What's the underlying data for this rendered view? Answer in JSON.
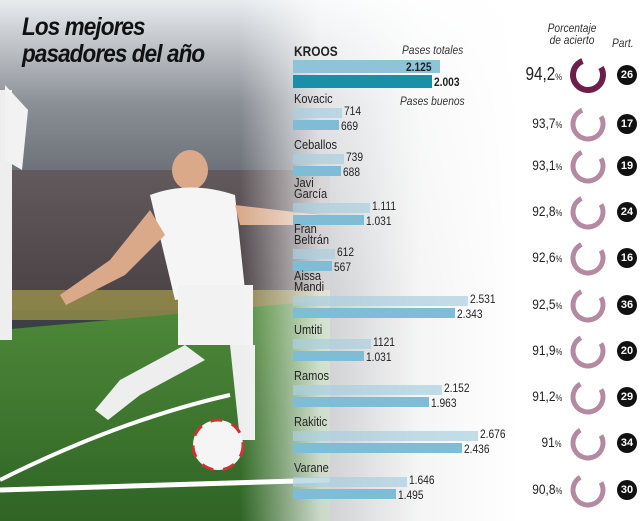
{
  "title_line1": "Los mejores",
  "title_line2": "pasadores del año",
  "headers": {
    "total": "Pases totales",
    "good": "Pases buenos",
    "pct": [
      "Porcentaje",
      "de acierto"
    ],
    "matches": "Part."
  },
  "colors": {
    "total_bar": "#a9cfe0",
    "good_bar": "#7fbcd6",
    "kroos_total": "#8fc3d8",
    "kroos_good": "#1a8fa8",
    "ring_highlight": "#6b1f4a",
    "ring": "#b38aa2"
  },
  "chart_data": {
    "type": "bar",
    "categories": [
      "KROOS",
      "Kovacic",
      "Ceballos",
      "Javi García",
      "Fran Beltrán",
      "Aissa Mandi",
      "Umtiti",
      "Ramos",
      "Rakitic",
      "Varane"
    ],
    "series": [
      {
        "name": "Pases totales",
        "values": [
          2125,
          714,
          739,
          1111,
          612,
          2531,
          1121,
          2152,
          2676,
          1646
        ],
        "labels": [
          "2.125",
          "714",
          "739",
          "1.111",
          "612",
          "2.531",
          "1121",
          "2.152",
          "2.676",
          "1.646"
        ]
      },
      {
        "name": "Pases buenos",
        "values": [
          2003,
          669,
          688,
          1031,
          567,
          2343,
          1031,
          1963,
          2436,
          1495
        ],
        "labels": [
          "2.003",
          "669",
          "688",
          "1.031",
          "567",
          "2.343",
          "1.031",
          "1.963",
          "2.436",
          "1.495"
        ]
      }
    ],
    "accuracy_pct": [
      94.2,
      93.7,
      93.1,
      92.8,
      92.6,
      92.5,
      91.9,
      91.2,
      91,
      90.8
    ],
    "accuracy_labels": [
      "94,2",
      "93,7",
      "93,1",
      "92,8",
      "92,6",
      "92,5",
      "91,9",
      "91,2",
      "91",
      "90,8"
    ],
    "pct_sign": "%",
    "matches": [
      "26",
      "17",
      "19",
      "24",
      "16",
      "36",
      "20",
      "29",
      "34",
      "30"
    ]
  }
}
